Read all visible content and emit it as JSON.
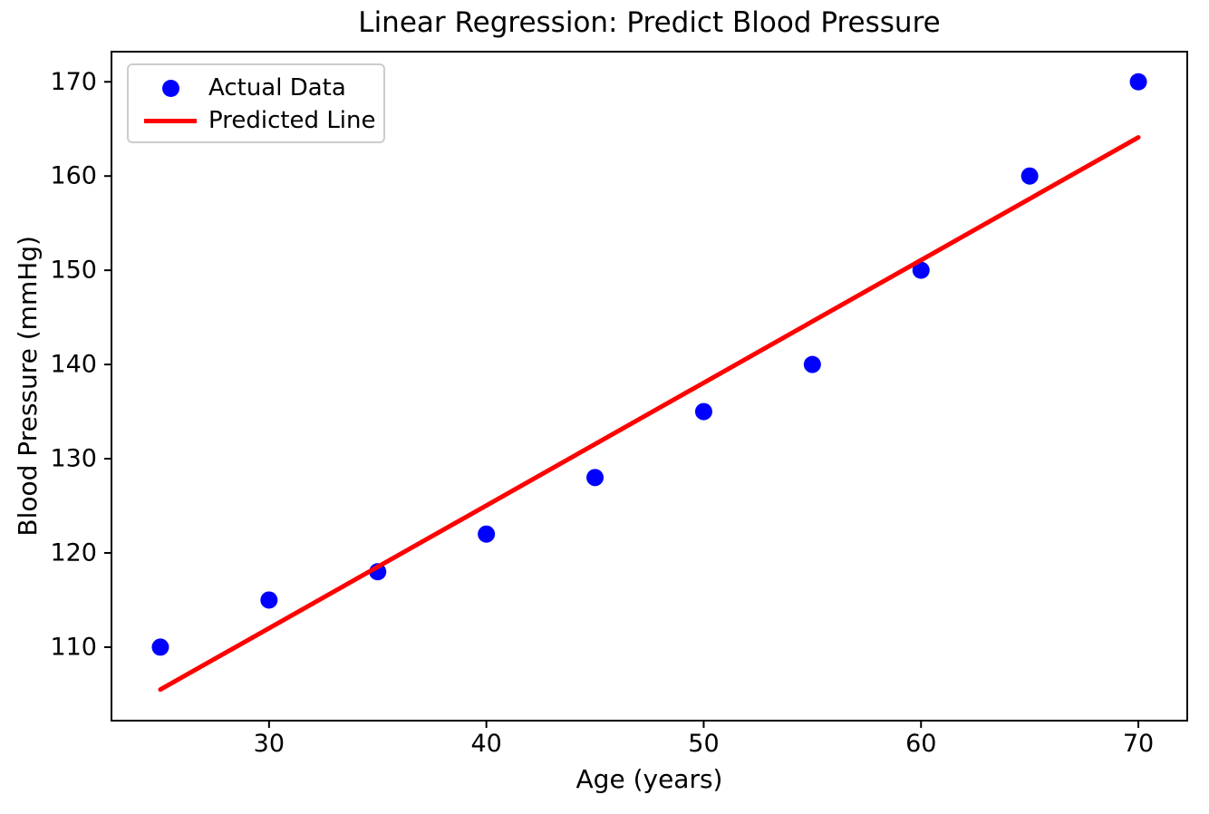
{
  "chart_data": {
    "type": "scatter",
    "title": "Linear Regression: Predict Blood Pressure",
    "xlabel": "Age (years)",
    "ylabel": "Blood Pressure (mmHg)",
    "series": [
      {
        "name": "Actual Data",
        "type": "scatter",
        "color": "#0000ff",
        "x": [
          25,
          30,
          35,
          40,
          45,
          50,
          55,
          60,
          65,
          70
        ],
        "y": [
          110,
          115,
          118,
          122,
          128,
          135,
          140,
          150,
          160,
          170
        ]
      },
      {
        "name": "Predicted Line",
        "type": "line",
        "color": "#ff0000",
        "x": [
          25,
          70
        ],
        "y": [
          105.5,
          164.1
        ]
      }
    ],
    "regression": {
      "slope": 1.304,
      "intercept": 72.85
    },
    "xticks": [
      "30",
      "40",
      "50",
      "60",
      "70"
    ],
    "yticks": [
      "110",
      "120",
      "130",
      "140",
      "150",
      "160",
      "170"
    ],
    "xtick_values": [
      30,
      40,
      50,
      60,
      70
    ],
    "ytick_values": [
      110,
      120,
      130,
      140,
      150,
      160,
      170
    ],
    "xlim": [
      22.75,
      72.25
    ],
    "ylim": [
      102.2,
      173.2
    ],
    "grid": false,
    "legend_position": "upper left",
    "axis_color": "#000000",
    "background_color": "#ffffff"
  }
}
